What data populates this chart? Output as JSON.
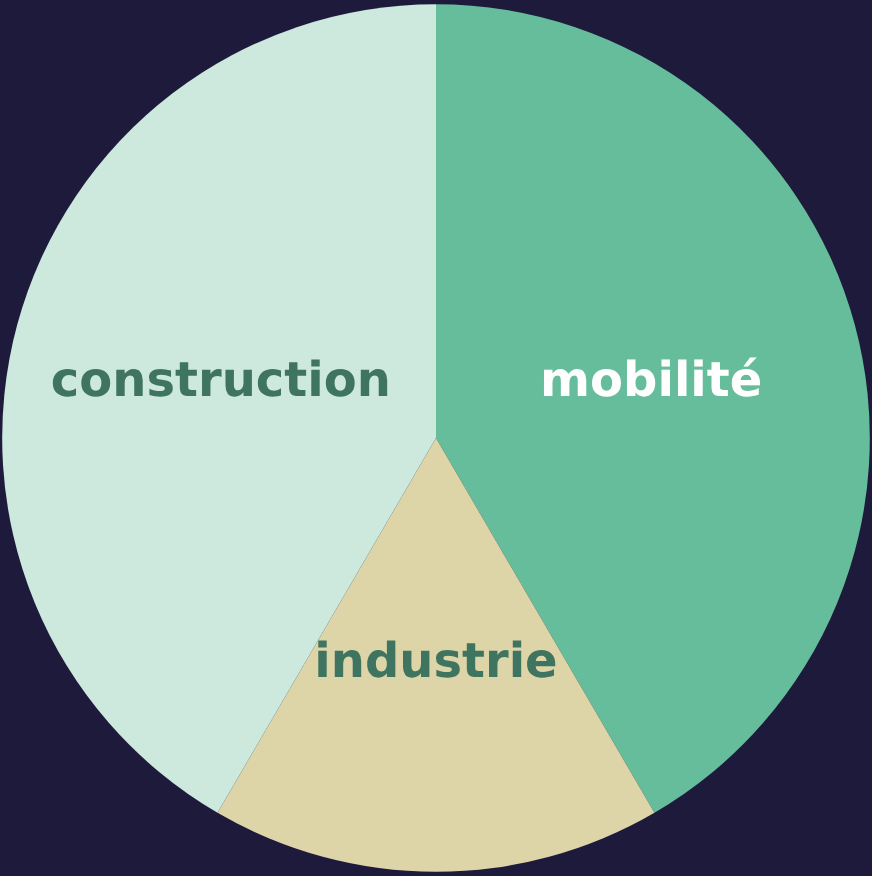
{
  "chart_data": {
    "type": "pie",
    "categories": [
      "mobilité",
      "industrie",
      "construction"
    ],
    "values": [
      41.6,
      16.8,
      41.6
    ],
    "colors": [
      "#66bd9b",
      "#ddd5a8",
      "#cde9de"
    ],
    "legend": false
  }
}
